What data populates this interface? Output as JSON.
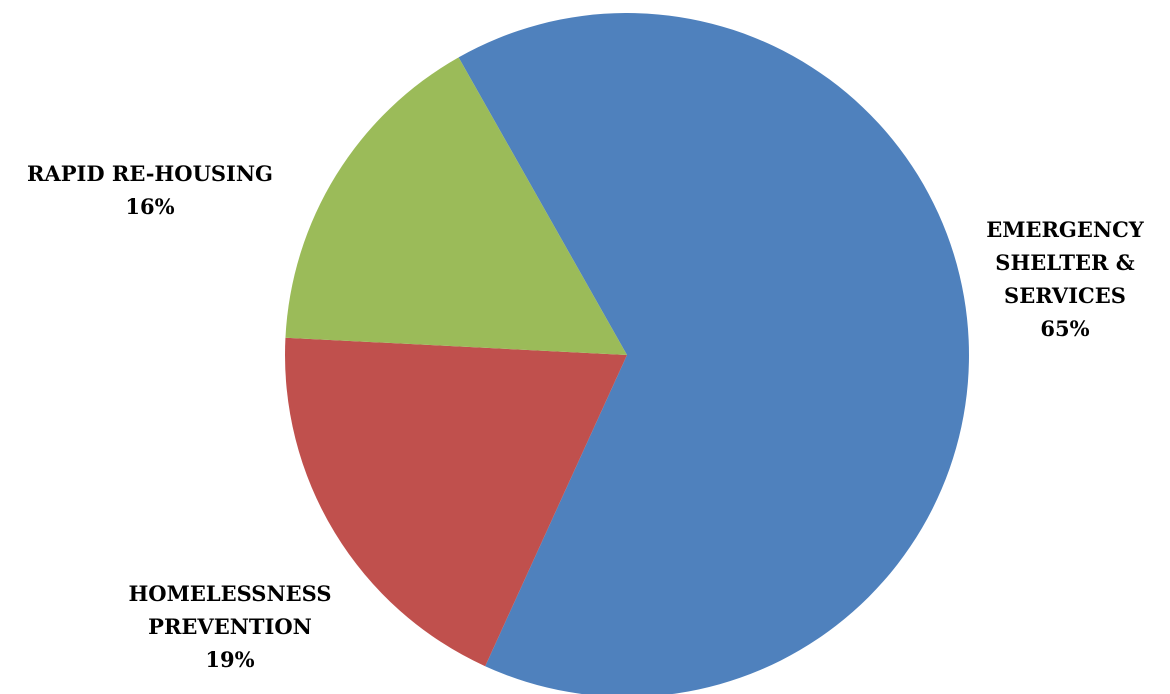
{
  "chart_data": {
    "type": "pie",
    "title": "",
    "slices": [
      {
        "label_lines": [
          "EMERGENCY",
          "SHELTER &",
          "SERVICES"
        ],
        "value": 65,
        "value_label": "65%",
        "color": "#4f81bd"
      },
      {
        "label_lines": [
          "HOMELESSNESS",
          "PREVENTION"
        ],
        "value": 19,
        "value_label": "19%",
        "color": "#c0504d"
      },
      {
        "label_lines": [
          "RAPID RE-HOUSING"
        ],
        "value": 16,
        "value_label": "16%",
        "color": "#9bbb59"
      }
    ],
    "legend": "none"
  }
}
